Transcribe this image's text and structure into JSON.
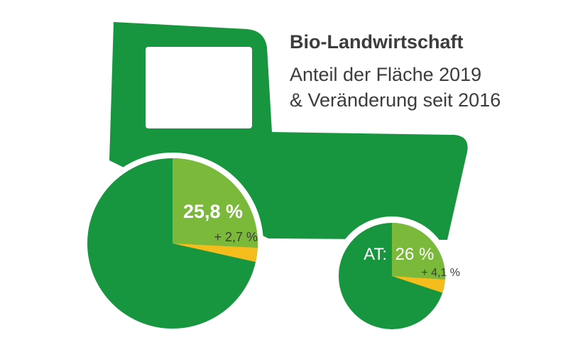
{
  "title": "Bio-Landwirtschaft",
  "subtitle_lines": [
    "Anteil der Fläche 2019",
    "& Veränderung seit 2016"
  ],
  "colors": {
    "tractor": "#17963f",
    "share": "#7ab93a",
    "change": "#f5bd1c",
    "label_light": "#ffffff",
    "label_dark": "#3c3c3c",
    "title_text": "#3c3c3c"
  },
  "chart_data": [
    {
      "type": "pie",
      "title": "",
      "slices": [
        {
          "label": "25,8 %",
          "value": 25.8
        },
        {
          "label": "+ 2,7 %",
          "value": 2.7
        }
      ]
    },
    {
      "type": "pie",
      "title": "",
      "prefix_label": "AT:",
      "slices": [
        {
          "label": "26 %",
          "value": 26
        },
        {
          "label": "+ 4,1 %",
          "value": 4.1
        }
      ]
    }
  ]
}
